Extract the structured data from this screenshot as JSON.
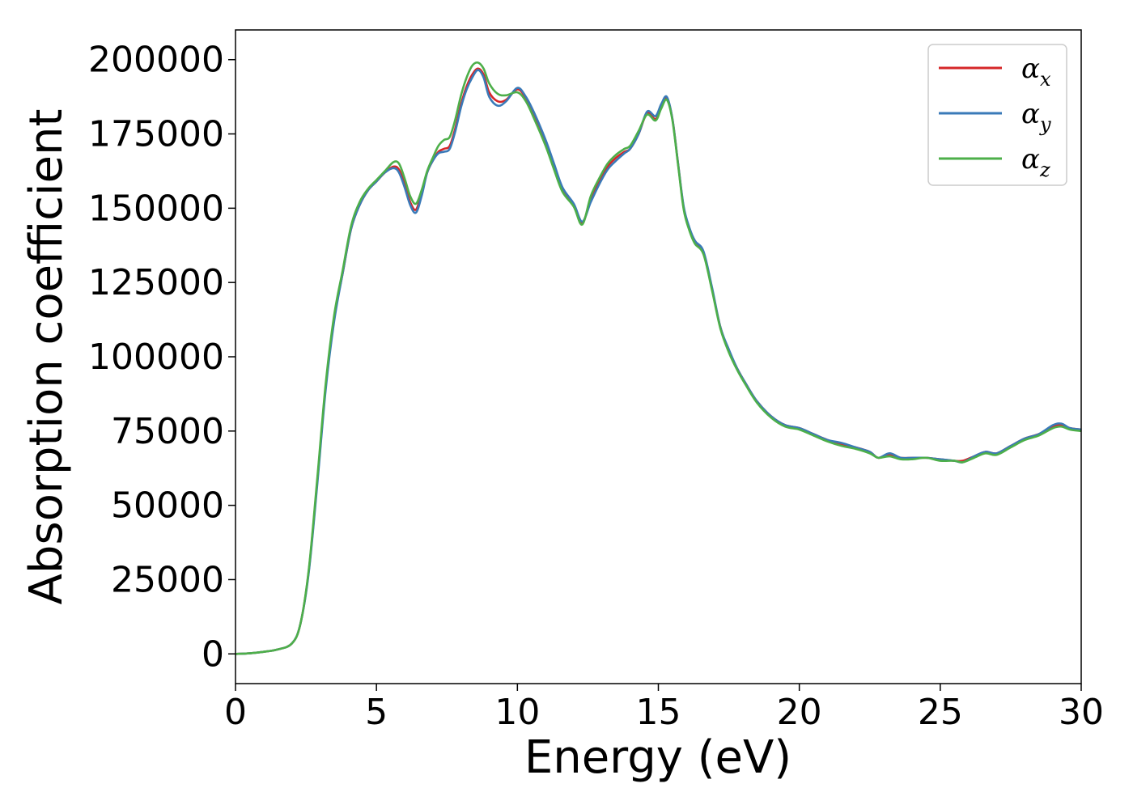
{
  "chart_data": {
    "type": "line",
    "title": "",
    "xlabel": "Energy (eV)",
    "ylabel": "Absorption coefficient",
    "xlim": [
      0,
      30
    ],
    "ylim": [
      -10000,
      210000
    ],
    "x_ticks": [
      0,
      5,
      10,
      15,
      20,
      25,
      30
    ],
    "y_ticks": [
      0,
      25000,
      50000,
      75000,
      100000,
      125000,
      150000,
      175000,
      200000
    ],
    "grid": false,
    "legend_position": "top-right",
    "x": [
      0,
      0.5,
      1.0,
      1.5,
      2.0,
      2.3,
      2.6,
      2.9,
      3.2,
      3.5,
      3.8,
      4.1,
      4.4,
      4.7,
      5.0,
      5.3,
      5.6,
      5.8,
      6.0,
      6.2,
      6.4,
      6.6,
      6.8,
      7.0,
      7.2,
      7.4,
      7.6,
      7.8,
      8.0,
      8.2,
      8.4,
      8.6,
      8.8,
      9.0,
      9.3,
      9.6,
      10.0,
      10.3,
      10.6,
      11.0,
      11.3,
      11.6,
      12.0,
      12.3,
      12.6,
      12.9,
      13.2,
      13.5,
      13.8,
      14.0,
      14.3,
      14.6,
      14.9,
      15.1,
      15.3,
      15.5,
      15.7,
      15.9,
      16.1,
      16.3,
      16.6,
      16.9,
      17.2,
      17.5,
      17.8,
      18.1,
      18.5,
      19.0,
      19.5,
      20.0,
      20.5,
      21.0,
      21.5,
      22.0,
      22.5,
      22.8,
      23.2,
      23.6,
      24.0,
      24.5,
      25.0,
      25.5,
      25.8,
      26.2,
      26.6,
      27.0,
      27.5,
      28.0,
      28.5,
      29.0,
      29.3,
      29.6,
      30.0
    ],
    "series": [
      {
        "name": "α",
        "subscript": "x",
        "color": "#d62728",
        "values": [
          0,
          200,
          700,
          1500,
          3500,
          10000,
          28000,
          58000,
          90000,
          113000,
          128000,
          143000,
          151000,
          156000,
          159000,
          162000,
          164000,
          163000,
          158000,
          152000,
          149500,
          155000,
          162000,
          166000,
          169000,
          170000,
          171000,
          177000,
          185000,
          191000,
          195000,
          197000,
          195000,
          189000,
          186000,
          186500,
          190000,
          187000,
          181000,
          172000,
          164000,
          156000,
          151000,
          145000,
          153000,
          159000,
          164000,
          167000,
          169000,
          170000,
          175000,
          182000,
          180000,
          184000,
          187000,
          180000,
          165000,
          150000,
          143000,
          139000,
          135000,
          123000,
          110000,
          102000,
          96000,
          91000,
          85000,
          80000,
          77000,
          76000,
          74000,
          72000,
          70500,
          69500,
          68000,
          66000,
          67000,
          66000,
          66000,
          66000,
          65500,
          65000,
          65000,
          66500,
          68000,
          67500,
          70000,
          72500,
          74000,
          76500,
          77000,
          76000,
          75500
        ]
      },
      {
        "name": "α",
        "subscript": "y",
        "color": "#3a7ab8",
        "values": [
          0,
          200,
          700,
          1500,
          3500,
          10000,
          27500,
          57000,
          89000,
          112000,
          128000,
          143000,
          151000,
          156000,
          159000,
          162000,
          163500,
          162000,
          157000,
          151000,
          148500,
          154000,
          162000,
          166000,
          168500,
          169000,
          170000,
          176000,
          184000,
          190000,
          194000,
          196500,
          194000,
          187500,
          184500,
          186000,
          190500,
          187500,
          182000,
          173000,
          165000,
          157000,
          151500,
          145500,
          152000,
          158000,
          163000,
          166000,
          168500,
          170000,
          175000,
          182500,
          181000,
          185000,
          187500,
          180000,
          165000,
          150500,
          143500,
          139000,
          135500,
          123500,
          110000,
          102500,
          96000,
          91000,
          85000,
          80000,
          77000,
          76000,
          74000,
          72000,
          71000,
          69500,
          68000,
          66000,
          67500,
          66000,
          66000,
          66000,
          65500,
          65000,
          64500,
          66500,
          68000,
          67500,
          70000,
          72500,
          74000,
          77000,
          77500,
          76000,
          75500
        ]
      },
      {
        "name": "α",
        "subscript": "z",
        "color": "#4daf4a",
        "values": [
          0,
          200,
          700,
          1500,
          3500,
          10000,
          28500,
          59000,
          91000,
          114000,
          129000,
          144000,
          152000,
          156500,
          159500,
          162500,
          165500,
          165000,
          160000,
          154000,
          151500,
          156000,
          162500,
          167000,
          171000,
          173000,
          174000,
          180000,
          188000,
          194000,
          198000,
          199000,
          197000,
          192000,
          188500,
          188000,
          189000,
          186000,
          180000,
          171000,
          163000,
          155500,
          150500,
          144500,
          154000,
          160000,
          165000,
          168000,
          170000,
          171000,
          176000,
          181500,
          179500,
          183500,
          186500,
          179500,
          164500,
          149500,
          142500,
          138000,
          134500,
          122500,
          109500,
          101500,
          95500,
          90500,
          84500,
          79500,
          76500,
          75500,
          73500,
          71500,
          70000,
          69000,
          67500,
          66000,
          66500,
          65500,
          65500,
          66000,
          65000,
          65000,
          64500,
          66000,
          67500,
          67000,
          69500,
          72000,
          73500,
          76000,
          76500,
          75500,
          75000
        ]
      }
    ]
  }
}
